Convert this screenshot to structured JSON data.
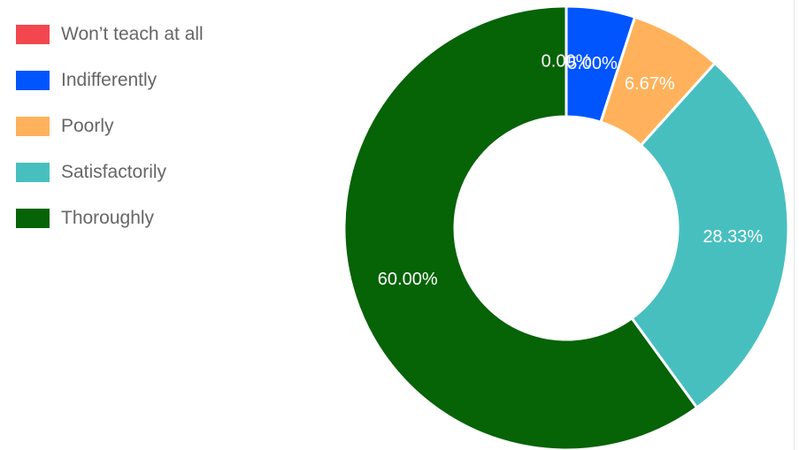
{
  "chart_data": {
    "type": "pie",
    "categories": [
      "Won’t teach at all",
      "Indifferently",
      "Poorly",
      "Satisfactorily",
      "Thoroughly"
    ],
    "values": [
      0.0,
      5.0,
      6.67,
      28.33,
      60.0
    ],
    "data_labels": [
      "0.00%",
      "5.00%",
      "6.67%",
      "28.33%",
      "60.00%"
    ],
    "colors": [
      "#f2474f",
      "#0055ff",
      "#ffb25b",
      "#48bfbf",
      "#066306"
    ],
    "donut": true,
    "legend_position": "top-left",
    "title": "",
    "xlabel": "",
    "ylabel": ""
  }
}
